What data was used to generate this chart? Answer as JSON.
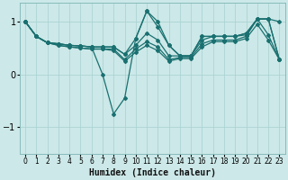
{
  "xlabel": "Humidex (Indice chaleur)",
  "bg_color": "#cce8e8",
  "grid_color": "#a8d0d0",
  "line_color": "#1a7070",
  "xlim": [
    -0.5,
    23.5
  ],
  "ylim": [
    -1.5,
    1.35
  ],
  "yticks": [
    -1,
    0,
    1
  ],
  "xticks": [
    0,
    1,
    2,
    3,
    4,
    5,
    6,
    7,
    8,
    9,
    10,
    11,
    12,
    13,
    14,
    15,
    16,
    17,
    18,
    19,
    20,
    21,
    22,
    23
  ],
  "lines": [
    {
      "x": [
        0,
        1,
        2,
        3,
        4,
        5,
        6,
        7,
        8,
        9,
        10,
        11,
        12,
        13,
        14,
        15,
        16,
        17,
        18,
        19,
        20,
        21,
        22,
        23
      ],
      "y": [
        1.0,
        0.72,
        0.6,
        0.58,
        0.55,
        0.54,
        0.52,
        0.0,
        -0.75,
        -0.45,
        0.68,
        1.2,
        1.0,
        0.55,
        0.35,
        0.35,
        0.72,
        0.72,
        0.72,
        0.72,
        0.78,
        1.05,
        1.05,
        0.28
      ]
    },
    {
      "x": [
        0,
        1,
        2,
        3,
        4,
        5,
        6,
        7,
        8,
        9,
        10,
        11,
        12,
        13,
        14,
        15,
        16,
        17,
        18,
        19,
        20,
        21,
        22,
        23
      ],
      "y": [
        1.0,
        0.72,
        0.6,
        0.58,
        0.55,
        0.54,
        0.52,
        0.52,
        0.52,
        0.38,
        0.68,
        1.2,
        0.9,
        0.55,
        0.35,
        0.35,
        0.72,
        0.72,
        0.72,
        0.72,
        0.78,
        1.05,
        1.05,
        1.0
      ]
    },
    {
      "x": [
        0,
        1,
        2,
        3,
        4,
        5,
        6,
        7,
        8,
        9,
        10,
        11,
        12,
        13,
        14,
        15,
        16,
        17,
        18,
        19,
        20,
        21,
        22,
        23
      ],
      "y": [
        1.0,
        0.72,
        0.6,
        0.58,
        0.55,
        0.54,
        0.52,
        0.52,
        0.52,
        0.38,
        0.55,
        0.78,
        0.65,
        0.35,
        0.35,
        0.35,
        0.65,
        0.72,
        0.72,
        0.72,
        0.75,
        1.05,
        1.05,
        0.28
      ]
    },
    {
      "x": [
        0,
        1,
        2,
        3,
        4,
        5,
        6,
        7,
        8,
        9,
        10,
        11,
        12,
        13,
        14,
        15,
        16,
        17,
        18,
        19,
        20,
        21,
        22,
        23
      ],
      "y": [
        1.0,
        0.72,
        0.6,
        0.55,
        0.52,
        0.5,
        0.48,
        0.48,
        0.48,
        0.28,
        0.48,
        0.62,
        0.52,
        0.28,
        0.32,
        0.32,
        0.58,
        0.65,
        0.65,
        0.65,
        0.72,
        1.05,
        0.75,
        0.28
      ]
    },
    {
      "x": [
        0,
        1,
        2,
        3,
        4,
        5,
        6,
        7,
        8,
        9,
        10,
        11,
        12,
        13,
        14,
        15,
        16,
        17,
        18,
        19,
        20,
        21,
        22,
        23
      ],
      "y": [
        1.0,
        0.72,
        0.6,
        0.55,
        0.52,
        0.5,
        0.48,
        0.48,
        0.45,
        0.25,
        0.42,
        0.55,
        0.45,
        0.25,
        0.3,
        0.3,
        0.52,
        0.62,
        0.62,
        0.62,
        0.68,
        0.95,
        0.65,
        0.28
      ]
    }
  ]
}
